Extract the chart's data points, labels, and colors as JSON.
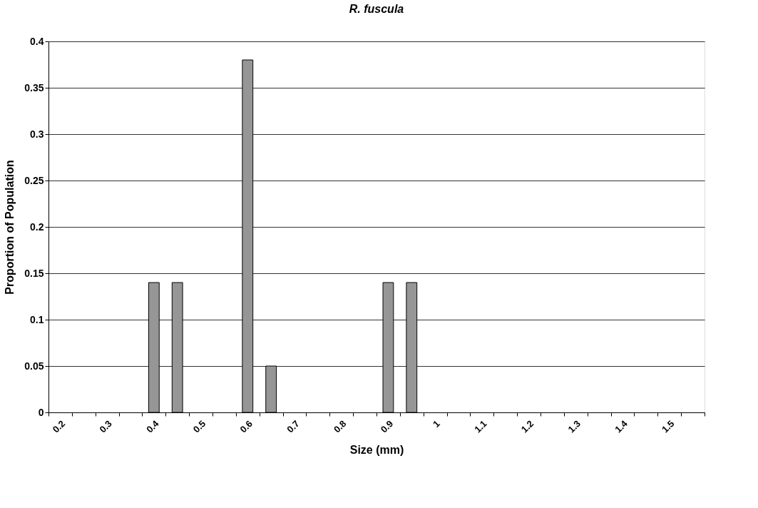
{
  "chart_data": {
    "type": "bar",
    "title": "R. fuscula",
    "xlabel": "Size (mm)",
    "ylabel": "Proportion of Population",
    "categories": [
      "0.2",
      null,
      "0.3",
      null,
      "0.4",
      null,
      "0.5",
      null,
      "0.6",
      null,
      "0.7",
      null,
      "0.8",
      null,
      "0.9",
      null,
      "1",
      null,
      "1.1",
      null,
      "1.2",
      null,
      "1.3",
      null,
      "1.4",
      null,
      "1.5",
      null
    ],
    "values": [
      0,
      0,
      0,
      0,
      0.14,
      0.14,
      0,
      0,
      0.38,
      0.05,
      0,
      0,
      0,
      0,
      0.14,
      0.14,
      0,
      0,
      0,
      0,
      0,
      0,
      0,
      0,
      0,
      0,
      0,
      0
    ],
    "color": "#969696",
    "ylim": [
      0,
      0.4
    ],
    "yticks": [
      0,
      0.05,
      0.1,
      0.15,
      0.2,
      0.25,
      0.3,
      0.35,
      0.4
    ],
    "grid": "y"
  }
}
